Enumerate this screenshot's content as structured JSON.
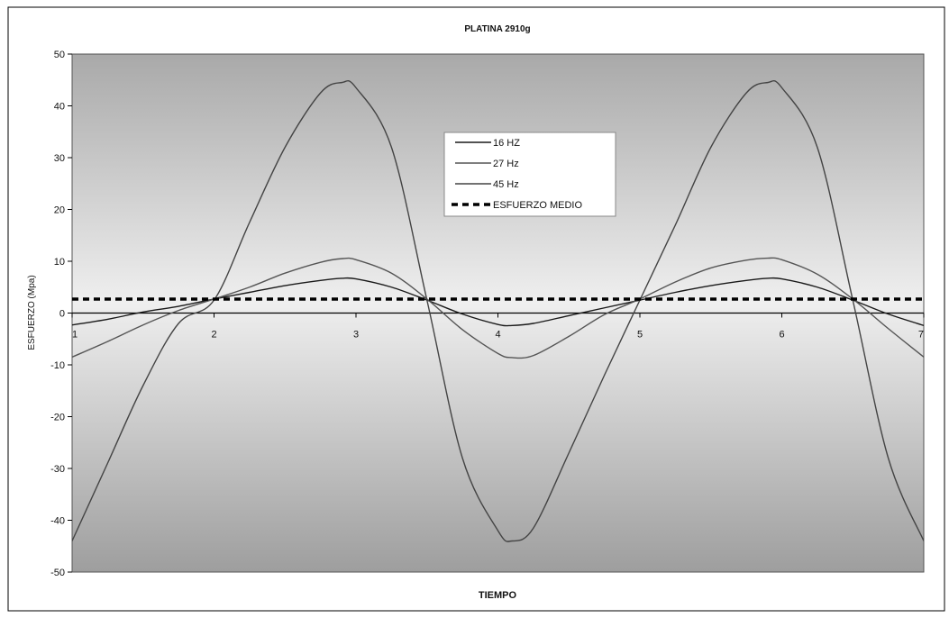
{
  "chart_data": {
    "type": "line",
    "title": "PLATINA 2910g",
    "xlabel": "TIEMPO",
    "ylabel": "ESFUERZO (Mpa)",
    "xlim": [
      1,
      7
    ],
    "ylim": [
      -50,
      50
    ],
    "x_ticks": [
      1,
      2,
      3,
      4,
      5,
      6,
      7
    ],
    "y_ticks": [
      -50,
      -40,
      -30,
      -20,
      -10,
      0,
      10,
      20,
      30,
      40,
      50
    ],
    "grid": false,
    "legend_position": "top-center",
    "x": [
      1.0,
      1.25,
      1.5,
      1.75,
      2.0,
      2.25,
      2.5,
      2.75,
      2.9,
      3.0,
      3.25,
      3.5,
      3.75,
      4.0,
      4.1,
      4.25,
      4.5,
      4.75,
      5.0,
      5.25,
      5.5,
      5.75,
      5.9,
      6.0,
      6.25,
      6.5,
      6.75,
      7.0
    ],
    "series": [
      {
        "name": "16 HZ",
        "color": "#1a1a1a",
        "style": "solid",
        "values": [
          -2.3,
          -1.2,
          0.2,
          1.3,
          2.7,
          4.0,
          5.3,
          6.3,
          6.7,
          6.6,
          5.0,
          2.5,
          -0.2,
          -2.2,
          -2.4,
          -2.0,
          -0.5,
          1.0,
          2.5,
          4.0,
          5.3,
          6.3,
          6.7,
          6.6,
          5.0,
          2.5,
          -0.2,
          -2.4
        ]
      },
      {
        "name": "27 Hz",
        "color": "#555555",
        "style": "solid",
        "values": [
          -8.5,
          -5.5,
          -2.3,
          0.5,
          2.7,
          5.0,
          7.7,
          9.8,
          10.5,
          10.3,
          7.7,
          2.7,
          -3.2,
          -7.8,
          -8.6,
          -8.2,
          -4.5,
          -0.3,
          2.7,
          6.0,
          8.7,
          10.2,
          10.6,
          10.3,
          7.5,
          2.7,
          -3.0,
          -8.5
        ]
      },
      {
        "name": "45 Hz",
        "color": "#444444",
        "style": "solid",
        "values": [
          -44.0,
          -29.0,
          -14.0,
          -2.0,
          2.5,
          17.5,
          32.0,
          42.5,
          44.5,
          43.5,
          32.0,
          2.5,
          -28.0,
          -42.0,
          -44.0,
          -41.5,
          -27.0,
          -12.0,
          2.5,
          17.0,
          32.0,
          42.5,
          44.5,
          43.5,
          32.0,
          2.5,
          -28.0,
          -44.0
        ]
      },
      {
        "name": "ESFUERZO MEDIO",
        "color": "#000000",
        "style": "dashed",
        "values": [
          2.7,
          2.7,
          2.7,
          2.7,
          2.7,
          2.7,
          2.7,
          2.7,
          2.7,
          2.7,
          2.7,
          2.7,
          2.7,
          2.7,
          2.7,
          2.7,
          2.7,
          2.7,
          2.7,
          2.7,
          2.7,
          2.7,
          2.7,
          2.7,
          2.7,
          2.7,
          2.7,
          2.7
        ]
      }
    ]
  }
}
